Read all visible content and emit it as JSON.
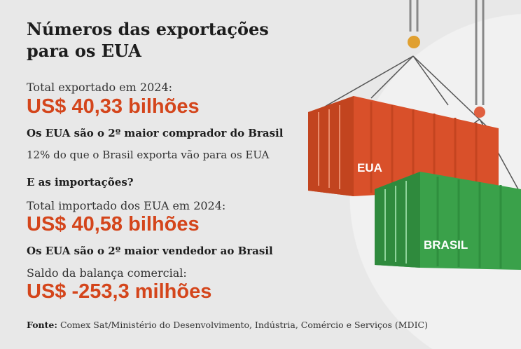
{
  "title_line1": "Números das exportações",
  "title_line2": "para os EUA",
  "exports": {
    "label": "Total exportado em 2024:",
    "value": "US$ 40,33 bilhões",
    "rank": "Os EUA são o 2º maior comprador do Brasil",
    "share": "12% do que o Brasil exporta vão para os EUA"
  },
  "imports": {
    "heading": "E as importações?",
    "label": "Total importado dos EUA em 2024:",
    "value": "US$ 40,58 bilhões",
    "rank": "Os EUA são o 2º maior vendedor ao Brasil"
  },
  "balance": {
    "label": "Saldo da balança comercial:",
    "value": "US$ -253,3 milhões"
  },
  "source": {
    "prefix": "Fonte:",
    "text": " Comex Sat/Ministério do Desenvolvimento, Indústria, Comércio e Serviços (MDIC)"
  },
  "illustration": {
    "container_red_label": "EUA",
    "container_green_label": "BRASIL"
  },
  "colors": {
    "accent": "#d4451b",
    "red_container": "#d9502a",
    "green_container": "#3aa14a",
    "background": "#e8e8e8"
  }
}
